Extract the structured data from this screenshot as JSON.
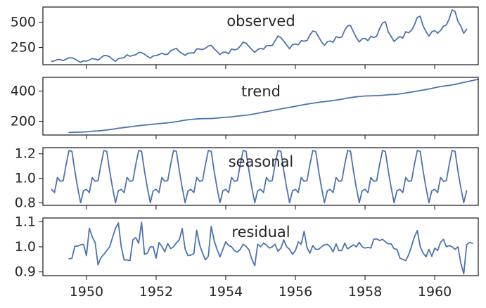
{
  "chart_data": {
    "type": "line",
    "x_axis": {
      "unit": "year",
      "range": [
        1948.75,
        1961.25
      ],
      "ticks": [
        1950,
        1952,
        1954,
        1956,
        1958,
        1960
      ],
      "tick_labels": [
        "1950",
        "1952",
        "1954",
        "1956",
        "1958",
        "1960"
      ]
    },
    "grid": false,
    "line_color": "#4c72b0",
    "panels": [
      {
        "title": "observed",
        "ylim": [
          80,
          650
        ],
        "yticks": [
          250,
          500
        ],
        "ytick_labels": [
          "250",
          "500"
        ],
        "x_start": 1949.0,
        "values": [
          112,
          118,
          132,
          129,
          121,
          135,
          148,
          148,
          136,
          119,
          104,
          118,
          115,
          126,
          141,
          135,
          125,
          149,
          170,
          170,
          158,
          133,
          114,
          140,
          145,
          150,
          178,
          163,
          172,
          178,
          199,
          199,
          184,
          162,
          146,
          166,
          171,
          180,
          193,
          181,
          183,
          218,
          230,
          242,
          209,
          191,
          172,
          194,
          196,
          196,
          236,
          235,
          229,
          243,
          264,
          272,
          237,
          211,
          180,
          201,
          204,
          188,
          235,
          227,
          234,
          264,
          302,
          293,
          259,
          229,
          203,
          229,
          242,
          233,
          267,
          269,
          270,
          315,
          364,
          347,
          312,
          274,
          237,
          278,
          284,
          277,
          317,
          313,
          318,
          374,
          413,
          405,
          355,
          306,
          271,
          306,
          315,
          301,
          356,
          348,
          355,
          422,
          465,
          467,
          404,
          347,
          305,
          336,
          340,
          318,
          362,
          348,
          363,
          435,
          491,
          505,
          404,
          359,
          310,
          337,
          360,
          342,
          406,
          396,
          420,
          472,
          548,
          559,
          463,
          407,
          362,
          405,
          417,
          391,
          419,
          461,
          472,
          535,
          622,
          606,
          508,
          461,
          390,
          432
        ]
      },
      {
        "title": "trend",
        "ylim": [
          110,
          490
        ],
        "yticks": [
          200,
          400
        ],
        "ytick_labels": [
          "200",
          "400"
        ],
        "x_start": 1949.5,
        "values": [
          126.8,
          127.3,
          127.9,
          128.6,
          129.0,
          129.8,
          131.3,
          133.1,
          134.9,
          136.4,
          137.4,
          138.8,
          140.9,
          143.2,
          145.7,
          148.4,
          151.5,
          154.7,
          157.1,
          159.5,
          161.8,
          164.1,
          166.7,
          169.1,
          171.3,
          173.6,
          175.5,
          177.1,
          179.0,
          180.9,
          183.0,
          185.2,
          186.9,
          188.3,
          190.3,
          192.8,
          195.0,
          197.5,
          201.0,
          205.1,
          208.2,
          210.3,
          212.6,
          214.3,
          215.6,
          216.9,
          217.8,
          218.2,
          218.2,
          218.7,
          220.0,
          221.8,
          223.8,
          225.5,
          226.6,
          227.9,
          230.0,
          232.1,
          234.5,
          236.9,
          238.8,
          241.0,
          243.3,
          246.1,
          249.4,
          253.1,
          256.9,
          260.9,
          264.3,
          267.7,
          271.4,
          275.0,
          278.4,
          282.0,
          285.4,
          288.8,
          292.3,
          295.8,
          299.4,
          303.0,
          306.6,
          310.3,
          313.6,
          316.9,
          319.9,
          322.7,
          325.4,
          327.9,
          330.3,
          332.5,
          335.0,
          337.6,
          340.1,
          343.0,
          346.3,
          349.9,
          353.6,
          356.7,
          359.4,
          361.7,
          363.6,
          365.4,
          367.2,
          367.6,
          368.4,
          369.0,
          369.6,
          370.4,
          371.8,
          373.6,
          375.2,
          376.5,
          377.4,
          378.8,
          380.9,
          383.8,
          387.1,
          390.3,
          393.3,
          396.4,
          399.6,
          403.0,
          406.4,
          409.8,
          413.4,
          417.2,
          421.4,
          425.7,
          429.3,
          432.1,
          434.6,
          437.2,
          440.3,
          444.0,
          447.9,
          452.3,
          456.8,
          461.2,
          465.2,
          469.1,
          473.0,
          476.8
        ]
      },
      {
        "title": "seasonal",
        "ylim": [
          0.78,
          1.25
        ],
        "yticks": [
          0.8,
          1.0,
          1.2
        ],
        "ytick_labels": [
          "0.8",
          "1.0",
          "1.2"
        ],
        "x_start": 1949.0,
        "repeat_years": 12,
        "values": [
          0.91,
          0.884,
          1.007,
          0.976,
          0.981,
          1.113,
          1.227,
          1.22,
          1.06,
          0.922,
          0.801,
          0.899
        ]
      },
      {
        "title": "residual",
        "ylim": [
          0.885,
          1.115
        ],
        "yticks": [
          0.9,
          1.0,
          1.1
        ],
        "ytick_labels": [
          "0.9",
          "1.0",
          "1.1"
        ],
        "x_start": 1949.5,
        "values": [
          0.952,
          0.954,
          1.002,
          1.003,
          1.008,
          1.01,
          0.965,
          1.074,
          1.04,
          1.017,
          0.928,
          0.957,
          0.97,
          0.985,
          1.0,
          1.038,
          1.074,
          1.095,
          1.0,
          0.947,
          0.948,
          0.945,
          1.028,
          1.037,
          1.014,
          1.098,
          0.97,
          0.975,
          1.0,
          1.0,
          0.955,
          1.017,
          1.002,
          0.98,
          1.013,
          0.993,
          1.0,
          1.016,
          1.028,
          1.073,
          0.991,
          0.965,
          0.967,
          0.973,
          1.066,
          1.008,
          0.975,
          0.948,
          0.963,
          1.082,
          1.025,
          0.99,
          0.96,
          0.99,
          1.02,
          1.005,
          1.0,
          0.985,
          0.979,
          0.99,
          1.01,
          1.002,
          0.988,
          0.95,
          0.925,
          1.01,
          1.0,
          1.015,
          1.008,
          0.995,
          1.0,
          1.01,
          0.982,
          0.995,
          1.028,
          1.0,
          0.99,
          0.97,
          0.985,
          1.02,
          1.01,
          1.062,
          0.997,
          0.975,
          1.005,
          0.99,
          0.99,
          1.0,
          1.008,
          1.01,
          1.0,
          0.98,
          1.012,
          0.985,
          0.985,
          1.015,
          0.992,
          1.0,
          1.008,
          1.0,
          1.018,
          1.0,
          0.995,
          0.998,
          0.995,
          1.03,
          1.032,
          1.025,
          1.03,
          1.02,
          1.012,
          1.012,
          0.992,
          0.99,
          0.955,
          0.95,
          0.945,
          0.968,
          1.002,
          1.04,
          1.065,
          1.0,
          0.975,
          0.96,
          0.99,
          0.962,
          0.995,
          0.985,
          1.018,
          1.03,
          1.0,
          1.005,
          1.0,
          0.99,
          1.0,
          0.935,
          0.892,
          1.008,
          1.018,
          1.014
        ]
      }
    ]
  }
}
